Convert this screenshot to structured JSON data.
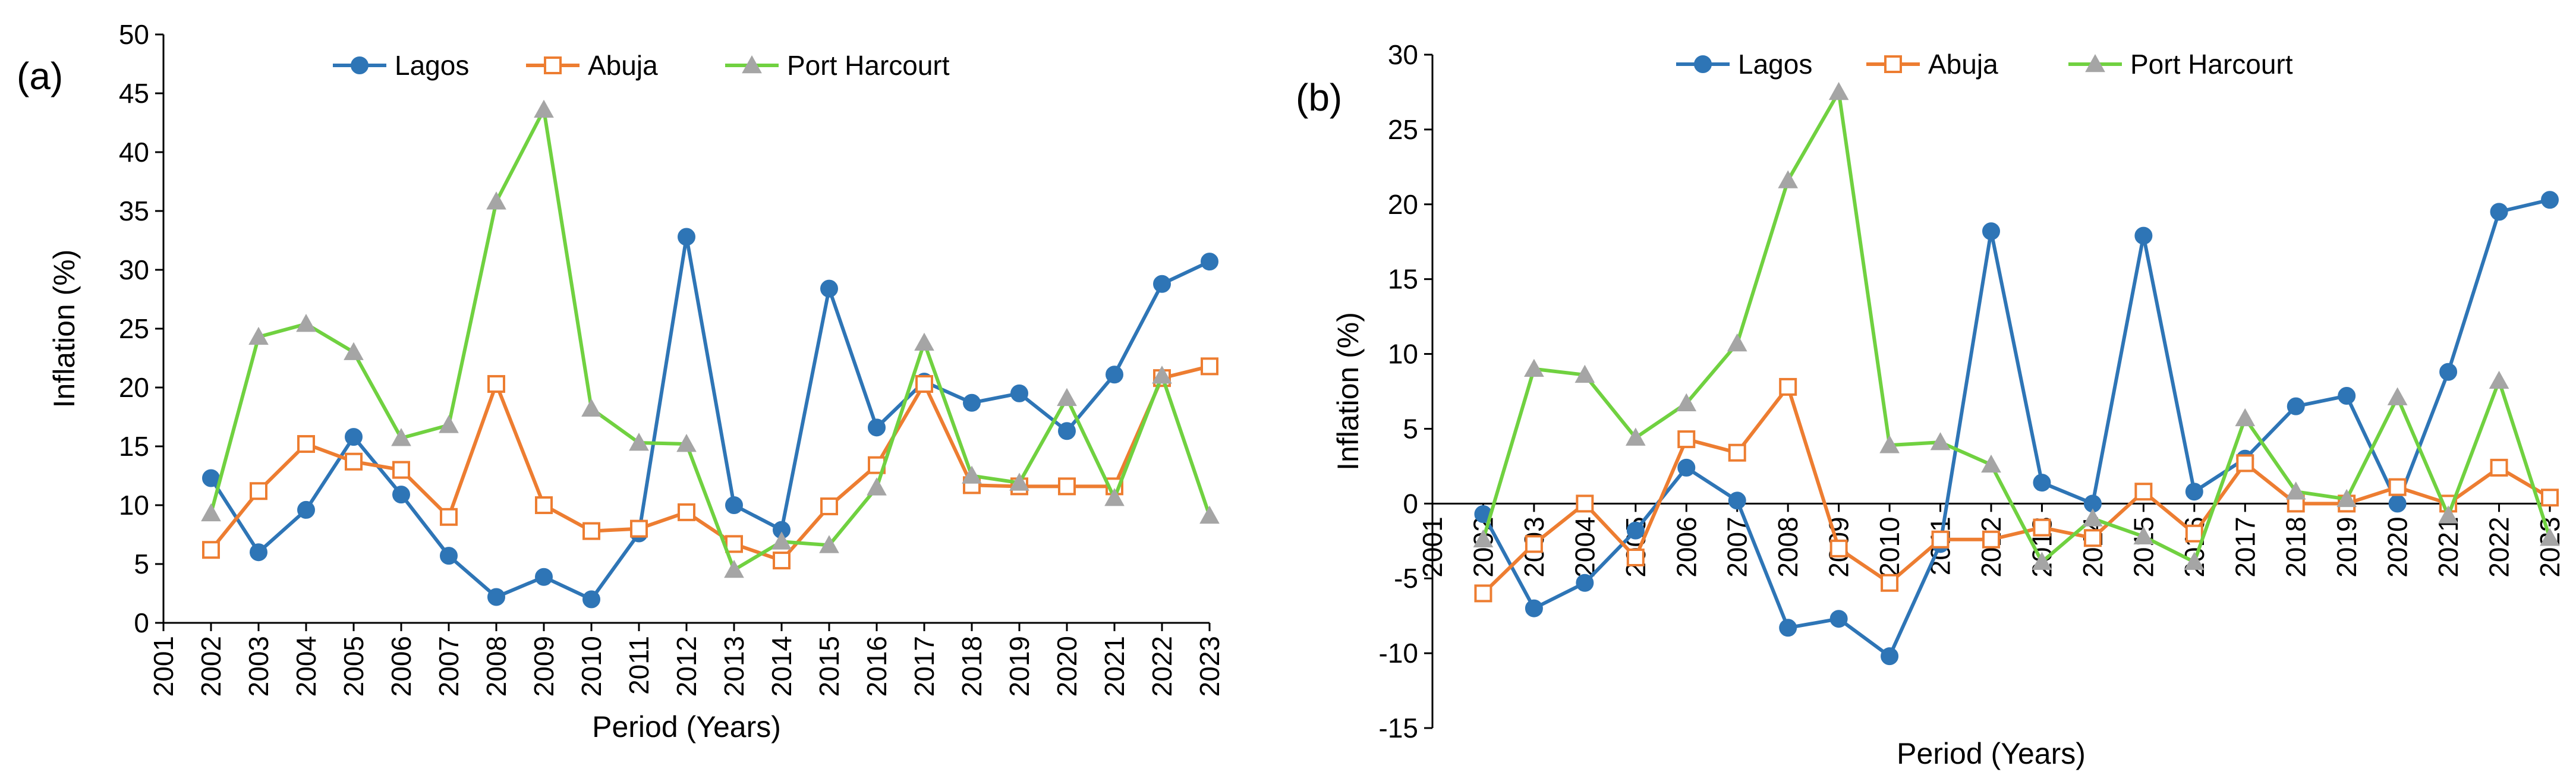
{
  "chart_data": [
    {
      "type": "line",
      "panel_label": "(a)",
      "xlabel": "Period (Years)",
      "ylabel": "Inflation (%)",
      "ylim": [
        0,
        50
      ],
      "yticks": [
        0,
        5,
        10,
        15,
        20,
        25,
        30,
        35,
        40,
        45,
        50
      ],
      "categories": [
        "2001",
        "2002",
        "2003",
        "2004",
        "2005",
        "2006",
        "2007",
        "2008",
        "2009",
        "2010",
        "2011",
        "2012",
        "2013",
        "2014",
        "2015",
        "2016",
        "2017",
        "2018",
        "2019",
        "2020",
        "2021",
        "2022",
        "2023"
      ],
      "legend_position": "top",
      "series": [
        {
          "name": "Lagos",
          "color": "#2E75B6",
          "marker": "circle",
          "values": [
            null,
            12.3,
            6.0,
            9.6,
            15.8,
            10.9,
            5.7,
            2.2,
            3.9,
            2.0,
            7.6,
            32.8,
            10.0,
            7.9,
            28.4,
            16.6,
            20.5,
            18.7,
            19.5,
            16.3,
            21.1,
            28.8,
            30.7
          ]
        },
        {
          "name": "Abuja",
          "color": "#ED7D31",
          "marker": "square",
          "values": [
            null,
            6.2,
            11.2,
            15.2,
            13.7,
            13.0,
            9.0,
            20.3,
            10.0,
            7.8,
            8.0,
            9.4,
            6.7,
            5.3,
            9.9,
            13.4,
            20.3,
            11.7,
            11.6,
            11.6,
            11.6,
            20.8,
            21.8
          ]
        },
        {
          "name": "Port Harcourt",
          "color": "#70D140",
          "marker": "triangle",
          "values": [
            null,
            9.3,
            24.3,
            25.4,
            23.0,
            15.7,
            16.8,
            35.8,
            43.6,
            18.2,
            15.3,
            15.2,
            4.5,
            6.9,
            6.6,
            11.5,
            23.8,
            12.5,
            11.9,
            19.1,
            10.6,
            21.0,
            9.1
          ]
        }
      ]
    },
    {
      "type": "line",
      "panel_label": "(b)",
      "xlabel": "Period (Years)",
      "ylabel": "Inflation (%)",
      "ylim": [
        -15,
        30
      ],
      "yticks": [
        -15,
        -10,
        -5,
        0,
        5,
        10,
        15,
        20,
        25,
        30
      ],
      "categories": [
        "2001",
        "2002",
        "2003",
        "2004",
        "2005",
        "2006",
        "2007",
        "2008",
        "2009",
        "2010",
        "2011",
        "2012",
        "2013",
        "2014",
        "2015",
        "2016",
        "2017",
        "2018",
        "2019",
        "2020",
        "2021",
        "2022",
        "2023"
      ],
      "legend_position": "top",
      "series": [
        {
          "name": "Lagos",
          "color": "#2E75B6",
          "marker": "circle",
          "values": [
            null,
            -0.7,
            -7.0,
            -5.3,
            -1.8,
            2.4,
            0.2,
            -8.3,
            -7.7,
            -10.2,
            -2.7,
            18.2,
            1.4,
            0.0,
            17.9,
            0.8,
            3.0,
            6.5,
            7.2,
            0.0,
            8.8,
            19.5,
            20.3
          ]
        },
        {
          "name": "Abuja",
          "color": "#ED7D31",
          "marker": "square",
          "values": [
            null,
            -6.0,
            -2.7,
            0.0,
            -3.6,
            4.3,
            3.4,
            7.8,
            -3.0,
            -5.3,
            -2.4,
            -2.4,
            -1.6,
            -2.3,
            0.8,
            -2.0,
            2.7,
            0.0,
            0.0,
            1.1,
            0.0,
            2.4,
            0.4
          ]
        },
        {
          "name": "Port Harcourt",
          "color": "#70D140",
          "marker": "triangle",
          "values": [
            null,
            -2.4,
            9.0,
            8.6,
            4.4,
            6.7,
            10.7,
            21.6,
            27.5,
            3.9,
            4.1,
            2.6,
            -3.9,
            -1.0,
            -2.2,
            -3.9,
            5.7,
            0.8,
            0.3,
            7.1,
            -0.8,
            8.2,
            -2.3
          ]
        }
      ]
    }
  ]
}
